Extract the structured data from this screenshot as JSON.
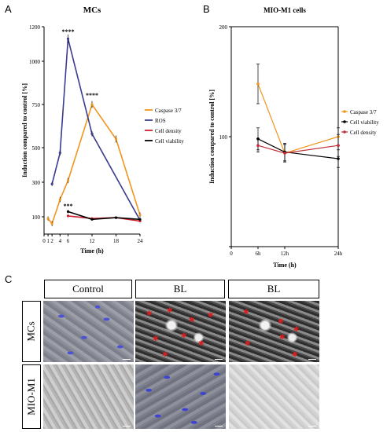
{
  "panels": {
    "a": "A",
    "b": "B",
    "c": "C"
  },
  "chart_data": [
    {
      "type": "line",
      "title": "MCs",
      "xlabel": "Time (h)",
      "ylabel": "Induction compared to control [%]",
      "x_ticks": [
        0,
        1,
        2,
        4,
        6,
        12,
        18,
        24
      ],
      "y_ticks": [
        100,
        300,
        500,
        750,
        1000,
        1200
      ],
      "xlim": [
        0,
        24
      ],
      "ylim": [
        0,
        1200
      ],
      "legend_position": "right",
      "series": [
        {
          "name": "Caspase 3/7",
          "color": "#f0961e",
          "x": [
            1,
            2,
            4,
            6,
            12,
            18,
            24
          ],
          "y": [
            90,
            60,
            200,
            310,
            750,
            550,
            110
          ],
          "err": [
            12,
            15,
            15,
            15,
            20,
            20,
            15
          ]
        },
        {
          "name": "ROS",
          "color": "#3b3b8f",
          "x": [
            2,
            4,
            6,
            12,
            24
          ],
          "y": [
            290,
            470,
            1130,
            580,
            80
          ],
          "err": [
            12,
            15,
            25,
            15,
            10
          ]
        },
        {
          "name": "Cell density",
          "color": "#d0202e",
          "x": [
            6,
            12,
            18,
            24
          ],
          "y": [
            105,
            90,
            95,
            75
          ],
          "err": [
            8,
            6,
            5,
            6
          ]
        },
        {
          "name": "Cell viability",
          "color": "#000000",
          "x": [
            6,
            12,
            18,
            24
          ],
          "y": [
            130,
            85,
            95,
            85
          ],
          "err": [
            10,
            6,
            5,
            8
          ]
        }
      ],
      "annotations": [
        {
          "text": "****",
          "x": 6,
          "y": 1160
        },
        {
          "text": "****",
          "x": 12,
          "y": 790
        },
        {
          "text": "***",
          "x": 6,
          "y": 150
        }
      ]
    },
    {
      "type": "line",
      "title": "MIO-M1 cells",
      "xlabel": "Time (h)",
      "ylabel": "Induction compared to control [%]",
      "categories": [
        "0",
        "6h",
        "12h",
        "24h"
      ],
      "x": [
        0,
        6,
        12,
        24
      ],
      "y_ticks": [
        0,
        100,
        200
      ],
      "ylim": [
        0,
        200
      ],
      "legend_position": "right",
      "series": [
        {
          "name": "Caspase 3/7",
          "color": "#f0961e",
          "x": [
            6,
            12,
            24
          ],
          "y": [
            148,
            85,
            100
          ],
          "err": [
            18,
            8,
            8
          ]
        },
        {
          "name": "Cell viability",
          "color": "#000000",
          "x": [
            6,
            12,
            24
          ],
          "y": [
            98,
            86,
            80
          ],
          "err": [
            10,
            8,
            8
          ]
        },
        {
          "name": "Cell density",
          "color": "#c0303a",
          "x": [
            6,
            12,
            24
          ],
          "y": [
            92,
            85,
            92
          ],
          "err": [
            6,
            8,
            10
          ]
        }
      ]
    }
  ],
  "micrographs": {
    "headers": [
      "Control",
      "BL",
      "BL"
    ],
    "rows": [
      "MCs",
      "MIO-M1"
    ]
  }
}
